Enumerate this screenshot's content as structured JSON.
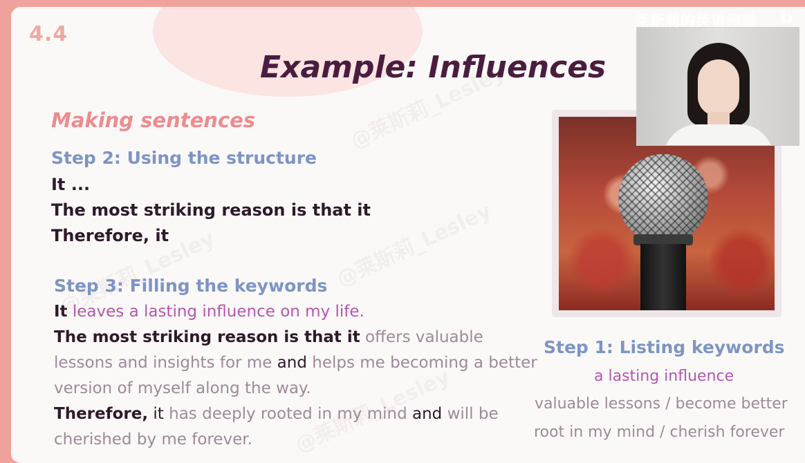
{
  "slide_number": "4.4",
  "title": "Example: Influences",
  "subtitle": "Making sentences",
  "step2": {
    "heading": "Step 2: Using the structure",
    "lines": [
      "It ...",
      "The most striking reason is that it",
      "Therefore, it"
    ]
  },
  "step3": {
    "heading": "Step 3: Filling the keywords",
    "s1_lead": "It",
    "s1_rest": " leaves a lasting influence on my life.",
    "s2_lead": "The most striking reason is that it",
    "s2_part1": " offers valuable lessons and insights for me ",
    "s2_and": "and",
    "s2_part2": " helps me becoming a better version of myself along the way.",
    "s3_lead": "Therefore,",
    "s3_it": " it",
    "s3_part1": " has deeply rooted in my mind ",
    "s3_and": "and",
    "s3_part2": " will be cherished by me forever."
  },
  "step1": {
    "heading": "Step 1: Listing keywords",
    "keyword": "a lasting influence",
    "line2": "valuable lessons / become better",
    "line3": "root in my mind / cherish forever"
  },
  "overlay": {
    "channel_name": "莱斯莉的英语频道",
    "platform_icon": "bilibili-icon",
    "watermark": "@莱斯莉_Lesley"
  },
  "colors": {
    "title": "#4a1d3f",
    "subtitle": "#ec8c90",
    "step_heading": "#7d95c6",
    "keyword": "#b456b0",
    "body_gray": "#9c8a98",
    "frame": "#f0a39c"
  }
}
